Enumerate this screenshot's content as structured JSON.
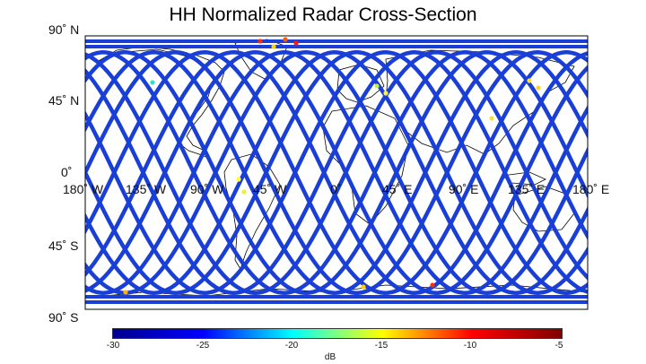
{
  "title": "HH Normalized Radar Cross-Section",
  "map": {
    "x_ticks": [
      "180˚ W",
      "135˚ W",
      "90˚ W",
      "45˚ W",
      "0˚",
      "45˚ E",
      "90˚ E",
      "135˚ E",
      "180˚ E"
    ],
    "y_ticks": [
      "90˚ N",
      "45˚ N",
      "0˚",
      "45˚ S",
      "90˚ S"
    ],
    "lon_range": [
      -180,
      180
    ],
    "lat_range": [
      -90,
      90
    ],
    "track_color": "#1a3fd6",
    "coastline_color": "#000000"
  },
  "colorbar": {
    "label": "dB",
    "min": -30,
    "max": -5,
    "ticks": [
      "-30",
      "-25",
      "-20",
      "-15",
      "-10",
      "-5"
    ],
    "colors": [
      "#00008f",
      "#0000ff",
      "#00ffff",
      "#ffff00",
      "#ff0000",
      "#800000"
    ]
  },
  "chart_data": {
    "type": "heatmap",
    "title": "HH Normalized Radar Cross-Section",
    "xlabel": "",
    "ylabel": "",
    "x_range": [
      -180,
      180
    ],
    "y_range": [
      -90,
      90
    ],
    "colorbar_range": [
      -30,
      -5
    ],
    "colorbar_label": "dB",
    "dominant_value_db": -27
  }
}
